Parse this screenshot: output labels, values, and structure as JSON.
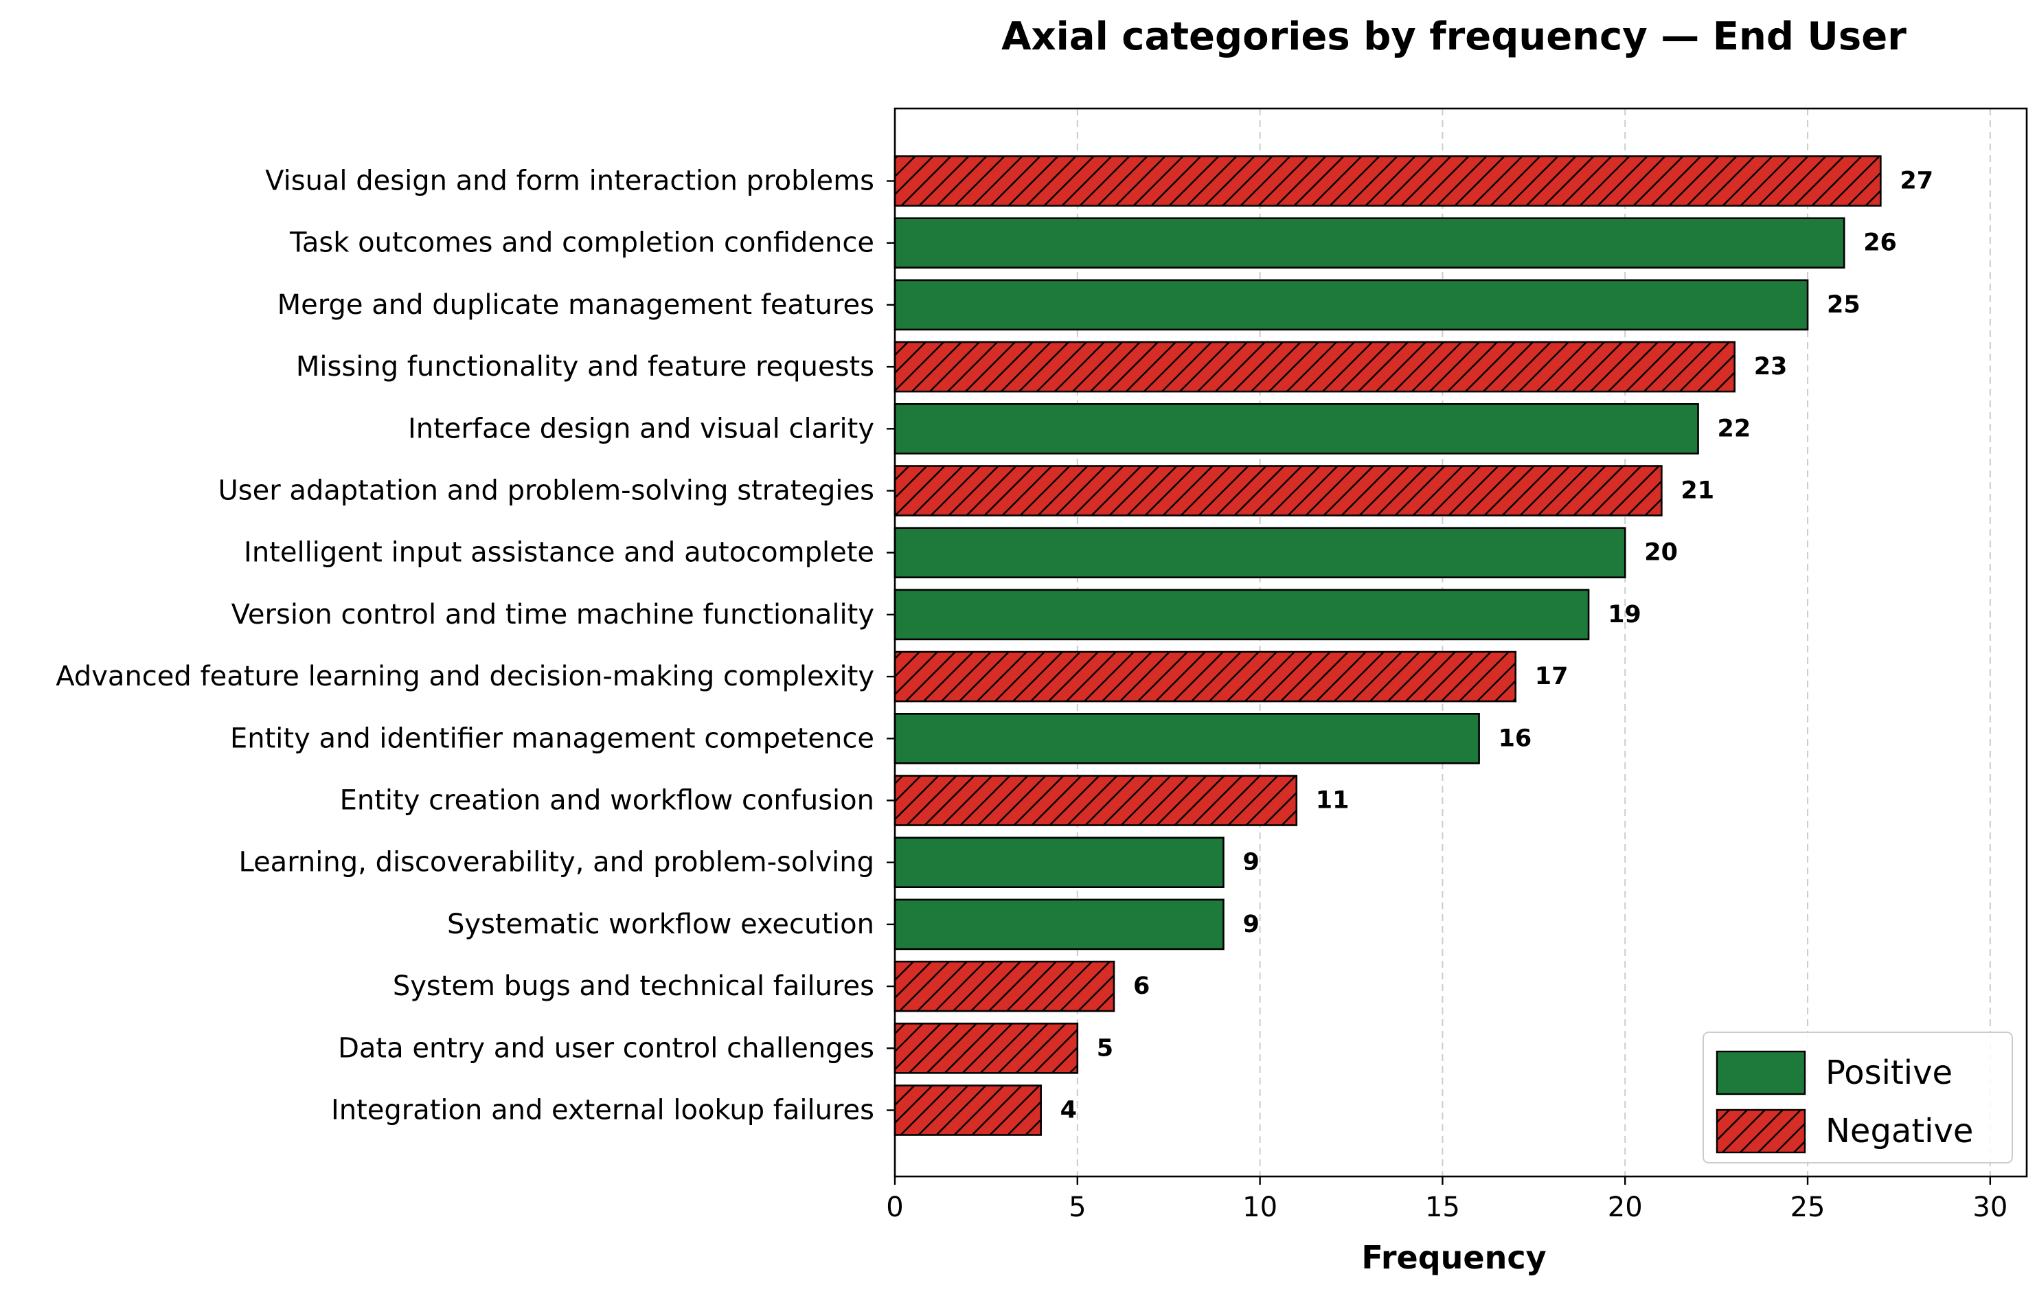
{
  "chart_data": {
    "type": "bar",
    "orientation": "horizontal",
    "title": "Axial categories by frequency — End User",
    "xlabel": "Frequency",
    "ylabel": "",
    "xlim": [
      0,
      31
    ],
    "xticks": [
      0,
      5,
      10,
      15,
      20,
      25,
      30
    ],
    "grid": "vertical dashed",
    "legend_position": "bottom-right",
    "colors": {
      "Positive": "#1e7a3a",
      "Negative": "#d62e26"
    },
    "series": [
      {
        "name": "Positive"
      },
      {
        "name": "Negative"
      }
    ],
    "categories": [
      "Visual design and form interaction problems",
      "Task outcomes and completion confidence",
      "Merge and duplicate management features",
      "Missing functionality and feature requests",
      "Interface design and visual clarity",
      "User adaptation and problem-solving strategies",
      "Intelligent input assistance and autocomplete",
      "Version control and time machine functionality",
      "Advanced feature learning and decision-making complexity",
      "Entity and identifier management competence",
      "Entity creation and workflow confusion",
      "Learning, discoverability, and problem-solving",
      "Systematic workflow execution",
      "System bugs and technical failures",
      "Data entry and user control challenges",
      "Integration and external lookup failures"
    ],
    "values": [
      27,
      26,
      25,
      23,
      22,
      21,
      20,
      19,
      17,
      16,
      11,
      9,
      9,
      6,
      5,
      4
    ],
    "sentiment": [
      "Negative",
      "Positive",
      "Positive",
      "Negative",
      "Positive",
      "Negative",
      "Positive",
      "Positive",
      "Negative",
      "Positive",
      "Negative",
      "Positive",
      "Positive",
      "Negative",
      "Negative",
      "Negative"
    ]
  }
}
